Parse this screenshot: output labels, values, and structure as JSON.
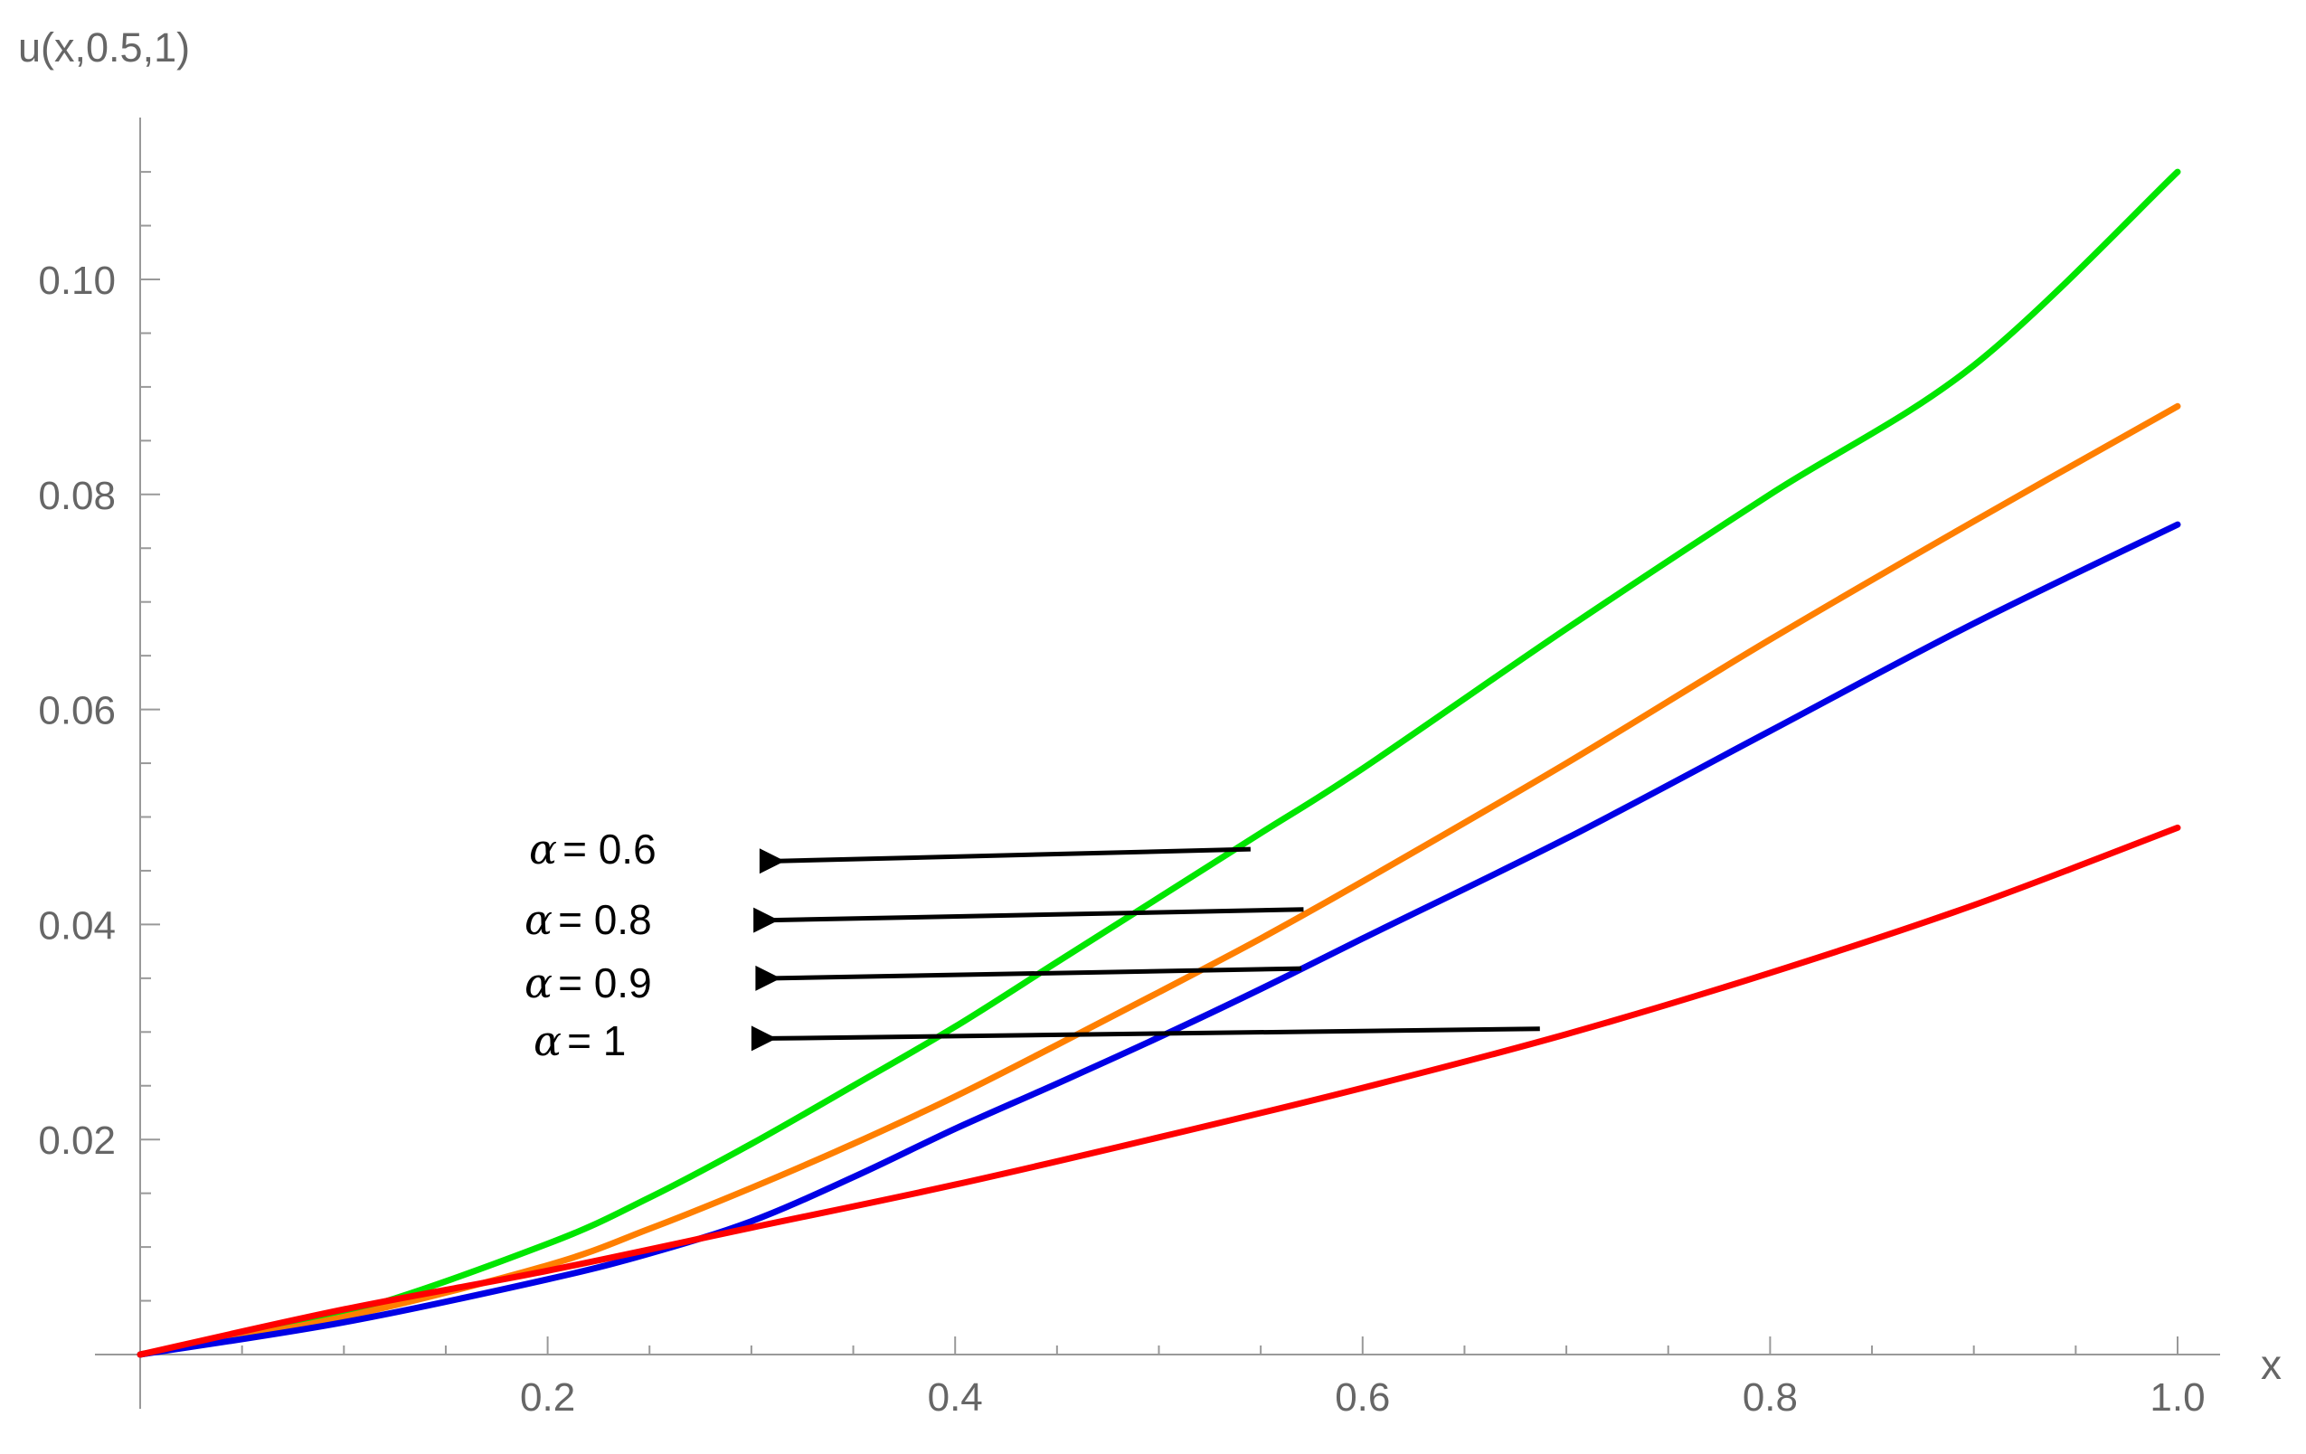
{
  "chart_data": {
    "type": "line",
    "title": "",
    "xlabel": "x",
    "ylabel": "u(x,0.5,1)",
    "xlim": [
      0,
      1.0
    ],
    "ylim": [
      0,
      0.115
    ],
    "grid": false,
    "legend": "none",
    "x_ticks": [
      0.2,
      0.4,
      0.6,
      0.8,
      1.0
    ],
    "x_tick_labels": [
      "0.2",
      "0.4",
      "0.6",
      "0.8",
      "1.0"
    ],
    "y_ticks": [
      0.02,
      0.04,
      0.06,
      0.08,
      0.1
    ],
    "y_tick_labels": [
      "0.02",
      "0.04",
      "0.06",
      "0.08",
      "0.10"
    ],
    "series": [
      {
        "color": "#00e600",
        "x": [
          0,
          0.1,
          0.2,
          0.25,
          0.3,
          0.35,
          0.4,
          0.45,
          0.5,
          0.55,
          0.6,
          0.7,
          0.8,
          0.9,
          1.0
        ],
        "y": [
          0,
          0.0038,
          0.0103,
          0.0146,
          0.0196,
          0.025,
          0.0305,
          0.0365,
          0.0425,
          0.0485,
          0.0545,
          0.0675,
          0.08,
          0.092,
          0.11
        ]
      },
      {
        "color": "#ff7f00",
        "x": [
          0,
          0.1,
          0.2,
          0.25,
          0.3,
          0.35,
          0.4,
          0.45,
          0.5,
          0.55,
          0.6,
          0.7,
          0.8,
          0.9,
          1.0
        ],
        "y": [
          0,
          0.0035,
          0.0083,
          0.0117,
          0.0155,
          0.0196,
          0.024,
          0.0288,
          0.0337,
          0.0387,
          0.044,
          0.055,
          0.0665,
          0.0775,
          0.0882
        ]
      },
      {
        "color": "#0000e6",
        "x": [
          0,
          0.1,
          0.2,
          0.25,
          0.3,
          0.35,
          0.4,
          0.45,
          0.5,
          0.55,
          0.6,
          0.7,
          0.8,
          0.9,
          1.0
        ],
        "y": [
          0,
          0.003,
          0.007,
          0.0094,
          0.0124,
          0.0165,
          0.021,
          0.0252,
          0.0295,
          0.034,
          0.0387,
          0.048,
          0.058,
          0.068,
          0.0772
        ]
      },
      {
        "color": "#ff0000",
        "x": [
          0,
          0.1,
          0.2,
          0.3,
          0.4,
          0.5,
          0.6,
          0.7,
          0.8,
          0.9,
          1.0
        ],
        "y": [
          0,
          0.0042,
          0.0078,
          0.0118,
          0.0158,
          0.0202,
          0.0248,
          0.0298,
          0.0355,
          0.0418,
          0.049
        ]
      }
    ],
    "annotations": [
      {
        "alpha": "α",
        "value": "= 0.6",
        "tail": [
          0.304,
          0.0459
        ],
        "head": [
          0.545,
          0.047
        ]
      },
      {
        "alpha": "α",
        "value": "= 0.8",
        "tail": [
          0.301,
          0.0404
        ],
        "head": [
          0.571,
          0.0414
        ]
      },
      {
        "alpha": "α",
        "value": "= 0.9",
        "tail": [
          0.302,
          0.035
        ],
        "head": [
          0.57,
          0.0359
        ]
      },
      {
        "alpha": "α",
        "value": "= 1",
        "tail": [
          0.3,
          0.0294
        ],
        "head": [
          0.687,
          0.0303
        ]
      }
    ]
  }
}
